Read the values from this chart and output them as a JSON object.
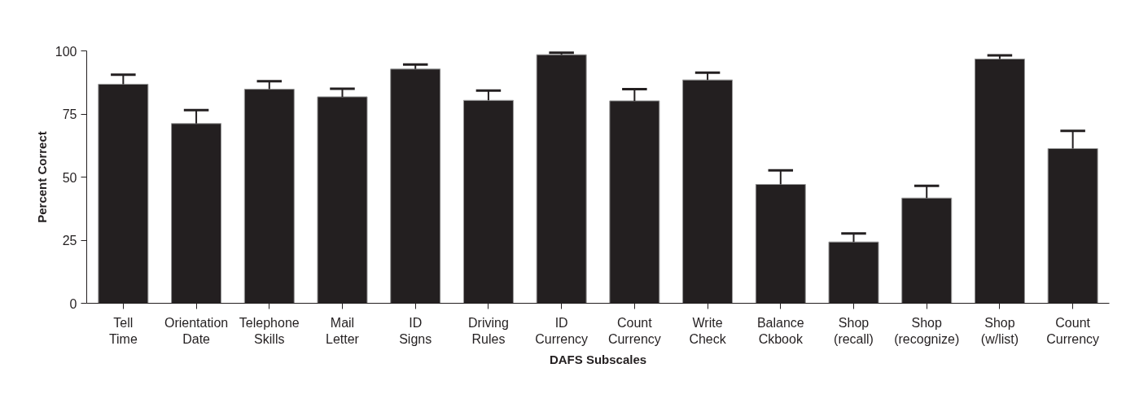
{
  "chart_data": {
    "type": "bar",
    "xlabel": "DAFS Subscales",
    "ylabel": "Percent Correct",
    "categories": [
      "Tell Time",
      "Orientation Date",
      "Telephone Skills",
      "Mail Letter",
      "ID Signs",
      "Driving Rules",
      "ID Currency",
      "Count Currency",
      "Write Check",
      "Balance Ckbook",
      "Shop (recall)",
      "Shop (recognize)",
      "Shop (w/list)",
      "Count Currency"
    ],
    "values": [
      86.8,
      71.2,
      84.8,
      81.8,
      92.8,
      80.4,
      98.5,
      80.2,
      88.5,
      47.1,
      24.3,
      41.7,
      96.8,
      61.3
    ],
    "errors": [
      [
        86.8,
        90.6
      ],
      [
        71.2,
        76.5
      ],
      [
        84.8,
        88.0
      ],
      [
        81.8,
        85.0
      ],
      [
        92.8,
        94.6
      ],
      [
        80.4,
        84.3
      ],
      [
        98.5,
        99.3
      ],
      [
        80.2,
        84.8
      ],
      [
        88.5,
        91.4
      ],
      [
        47.1,
        52.7
      ],
      [
        24.3,
        27.7
      ],
      [
        41.7,
        46.5
      ],
      [
        96.8,
        98.2
      ],
      [
        61.3,
        68.3
      ]
    ],
    "color": "#231f20",
    "ylim": [
      0,
      100
    ],
    "yticks": [
      0,
      25,
      50,
      75,
      100
    ],
    "grid": false
  }
}
